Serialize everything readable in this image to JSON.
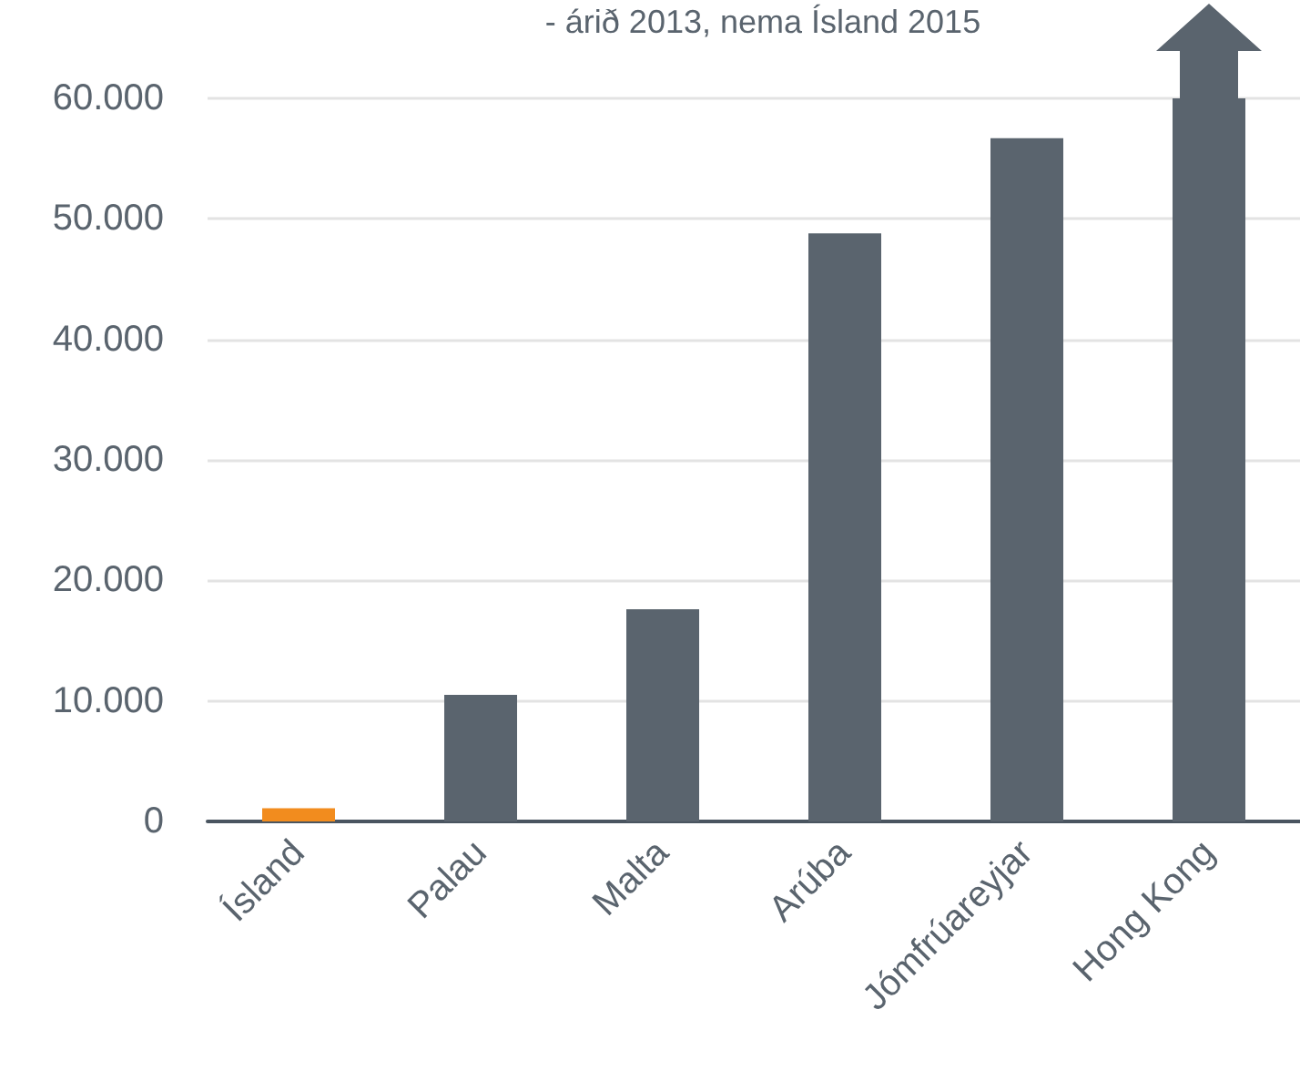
{
  "chart_data": {
    "type": "bar",
    "title": "- árið 2013, nema Ísland 2015",
    "categories": [
      "Ísland",
      "Palau",
      "Malta",
      "Arúba",
      "Jómfrúareyjar",
      "Hong Kong"
    ],
    "values": [
      1100,
      10500,
      17600,
      48800,
      56700,
      60000
    ],
    "colors": [
      "#f28c1e",
      "#5a646e",
      "#5a646e",
      "#5a646e",
      "#5a646e",
      "#5a646e"
    ],
    "ylim": [
      0,
      60000
    ],
    "yticks": [
      {
        "value": 0,
        "label": "0"
      },
      {
        "value": 10000,
        "label": "10.000"
      },
      {
        "value": 20000,
        "label": "20.000"
      },
      {
        "value": 30000,
        "label": "30.000"
      },
      {
        "value": 40000,
        "label": "40.000"
      },
      {
        "value": 50000,
        "label": "50.000"
      },
      {
        "value": 60000,
        "label": "60.000"
      }
    ],
    "grid": "y"
  }
}
